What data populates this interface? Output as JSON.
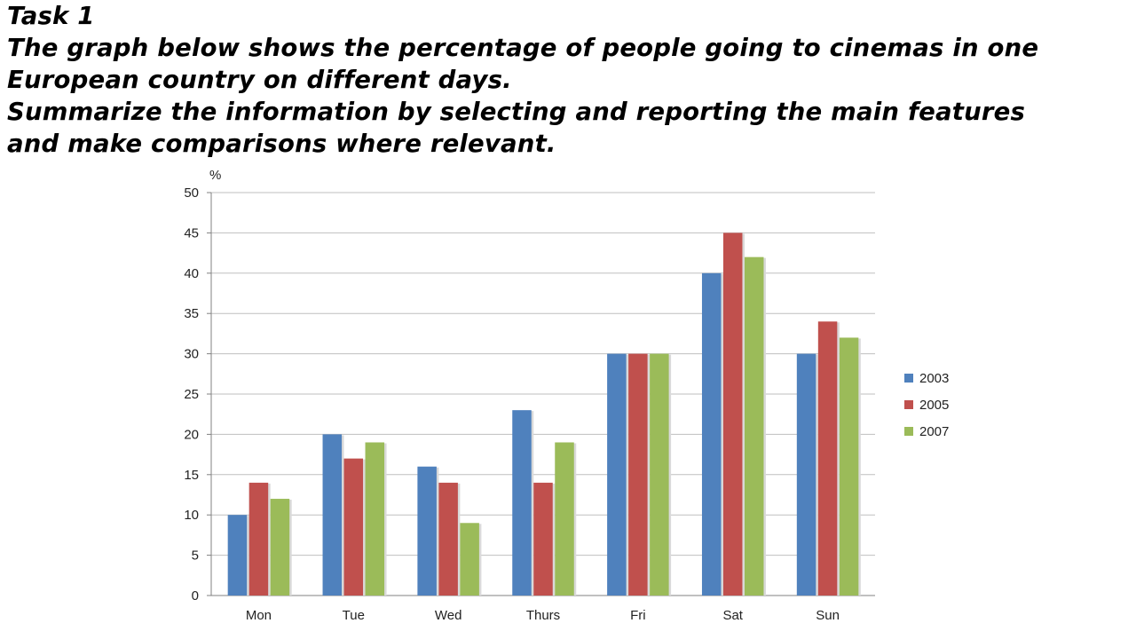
{
  "prompt": {
    "heading": "Task 1",
    "lines": [
      "The graph below shows the percentage of people going to cinemas in one",
      "European country on different days.",
      "Summarize the information by selecting and reporting the main features",
      "and make comparisons where relevant."
    ]
  },
  "chart_data": {
    "type": "bar",
    "title": "",
    "xlabel": "",
    "ylabel": "%",
    "ylim": [
      0,
      50
    ],
    "yticks": [
      0,
      5,
      10,
      15,
      20,
      25,
      30,
      35,
      40,
      45,
      50
    ],
    "grid": true,
    "legend_position": "right",
    "categories": [
      "Mon",
      "Tue",
      "Wed",
      "Thurs",
      "Fri",
      "Sat",
      "Sun"
    ],
    "series": [
      {
        "name": "2003",
        "color": "#4F81BD",
        "values": [
          10,
          20,
          16,
          23,
          30,
          40,
          30
        ]
      },
      {
        "name": "2005",
        "color": "#C0504D",
        "values": [
          14,
          17,
          14,
          14,
          30,
          45,
          34
        ]
      },
      {
        "name": "2007",
        "color": "#9BBB59",
        "values": [
          12,
          19,
          9,
          19,
          30,
          42,
          32
        ]
      }
    ]
  }
}
